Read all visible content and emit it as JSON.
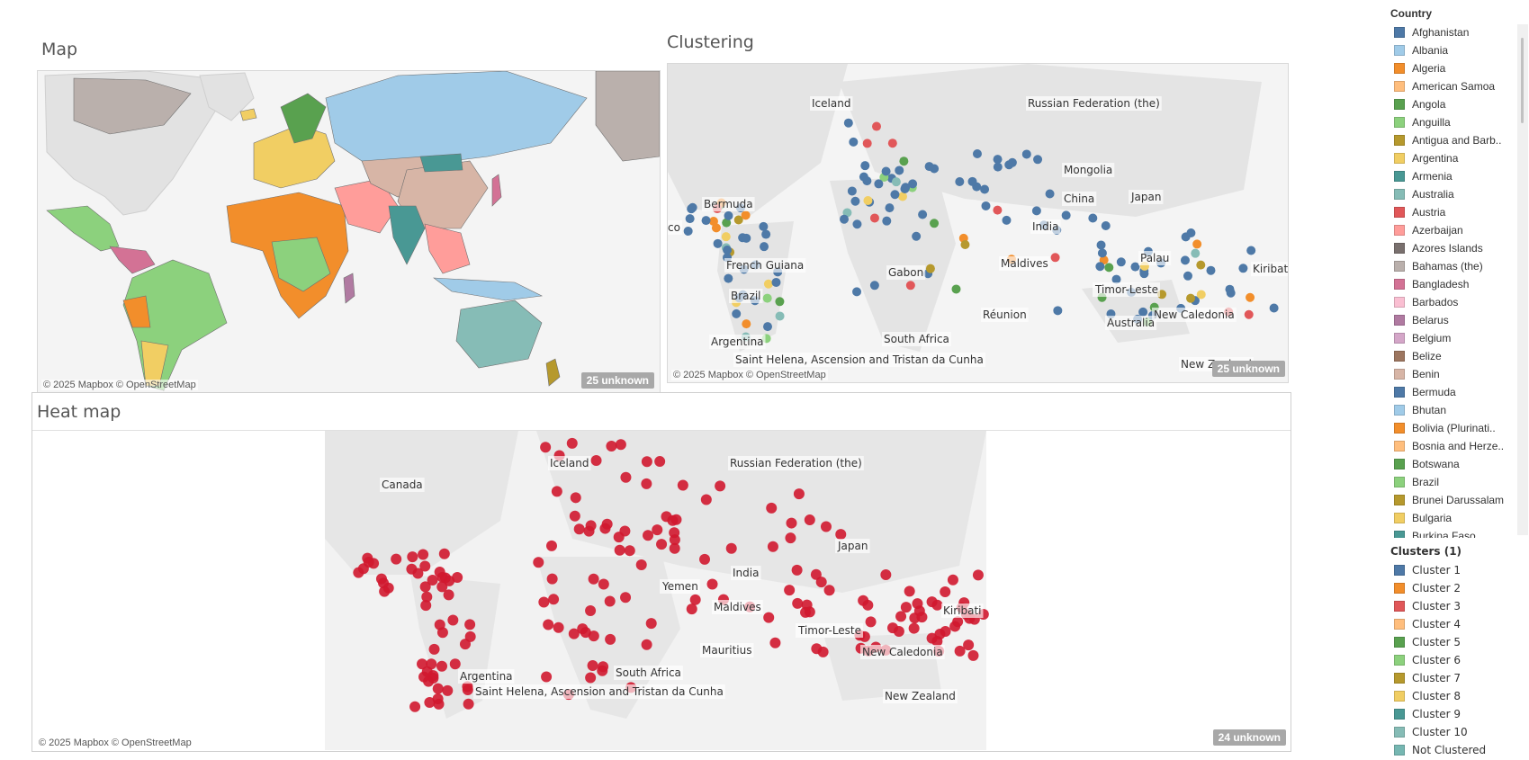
{
  "panels": {
    "map": {
      "title": "Map",
      "attribution": "© 2025 Mapbox © OpenStreetMap",
      "unknown": "25 unknown"
    },
    "clustering": {
      "title": "Clustering",
      "attribution": "© 2025 Mapbox © OpenStreetMap",
      "unknown": "25 unknown",
      "labels": [
        "Iceland",
        "Russian Federation (the)",
        "Mongolia",
        "China",
        "Japan",
        "Bermuda",
        "India",
        "French Guiana",
        "Maldives",
        "Gabon",
        "Brazil",
        "Palau",
        "Kiribati",
        "Timor-Leste",
        "New Caledonia",
        "Réunion",
        "Australia",
        "Argentina",
        "South Africa",
        "Saint Helena, Ascension and Tristan da Cunha",
        "New Zealand",
        "co"
      ]
    },
    "heatmap": {
      "title": "Heat map",
      "attribution": "© 2025 Mapbox © OpenStreetMap",
      "unknown": "24 unknown",
      "labels": [
        "Iceland",
        "Russian Federation (the)",
        "Canada",
        "Japan",
        "India",
        "Yemen",
        "Maldives",
        "Kiribati",
        "Timor-Leste",
        "Mauritius",
        "New Caledonia",
        "Argentina",
        "South Africa",
        "Saint Helena, Ascension and Tristan da Cunha",
        "New Zealand"
      ]
    }
  },
  "legend_country": {
    "title": "Country",
    "items": [
      {
        "label": "Afghanistan",
        "color": "#4e79a7"
      },
      {
        "label": "Albania",
        "color": "#a0cbe8"
      },
      {
        "label": "Algeria",
        "color": "#f28e2b"
      },
      {
        "label": "American Samoa",
        "color": "#ffbe7d"
      },
      {
        "label": "Angola",
        "color": "#59a14f"
      },
      {
        "label": "Anguilla",
        "color": "#8cd17d"
      },
      {
        "label": "Antigua and Barb..",
        "color": "#b6992d"
      },
      {
        "label": "Argentina",
        "color": "#f1ce63"
      },
      {
        "label": "Armenia",
        "color": "#499894"
      },
      {
        "label": "Australia",
        "color": "#86bcb6"
      },
      {
        "label": "Austria",
        "color": "#e15759"
      },
      {
        "label": "Azerbaijan",
        "color": "#ff9d9a"
      },
      {
        "label": "Azores Islands",
        "color": "#79706e"
      },
      {
        "label": "Bahamas (the)",
        "color": "#bab0ac"
      },
      {
        "label": "Bangladesh",
        "color": "#d37295"
      },
      {
        "label": "Barbados",
        "color": "#fabfd2"
      },
      {
        "label": "Belarus",
        "color": "#b07aa1"
      },
      {
        "label": "Belgium",
        "color": "#d4a6c8"
      },
      {
        "label": "Belize",
        "color": "#9d7660"
      },
      {
        "label": "Benin",
        "color": "#d7b5a6"
      },
      {
        "label": "Bermuda",
        "color": "#4e79a7"
      },
      {
        "label": "Bhutan",
        "color": "#a0cbe8"
      },
      {
        "label": "Bolivia (Plurinati..",
        "color": "#f28e2b"
      },
      {
        "label": "Bosnia and Herze..",
        "color": "#ffbe7d"
      },
      {
        "label": "Botswana",
        "color": "#59a14f"
      },
      {
        "label": "Brazil",
        "color": "#8cd17d"
      },
      {
        "label": "Brunei Darussalam",
        "color": "#b6992d"
      },
      {
        "label": "Bulgaria",
        "color": "#f1ce63"
      },
      {
        "label": "Burkina Faso",
        "color": "#499894"
      }
    ]
  },
  "legend_clusters": {
    "title": "Clusters (1)",
    "items": [
      {
        "label": "Cluster 1",
        "color": "#4e79a7"
      },
      {
        "label": "Cluster 2",
        "color": "#f28e2b"
      },
      {
        "label": "Cluster 3",
        "color": "#e15759"
      },
      {
        "label": "Cluster 4",
        "color": "#ffbe7d"
      },
      {
        "label": "Cluster 5",
        "color": "#59a14f"
      },
      {
        "label": "Cluster 6",
        "color": "#8cd17d"
      },
      {
        "label": "Cluster 7",
        "color": "#b6992d"
      },
      {
        "label": "Cluster 8",
        "color": "#f1ce63"
      },
      {
        "label": "Cluster 9",
        "color": "#499894"
      },
      {
        "label": "Cluster 10",
        "color": "#86bcb6"
      },
      {
        "label": "Not Clustered",
        "color": "#76b7b2"
      }
    ]
  }
}
